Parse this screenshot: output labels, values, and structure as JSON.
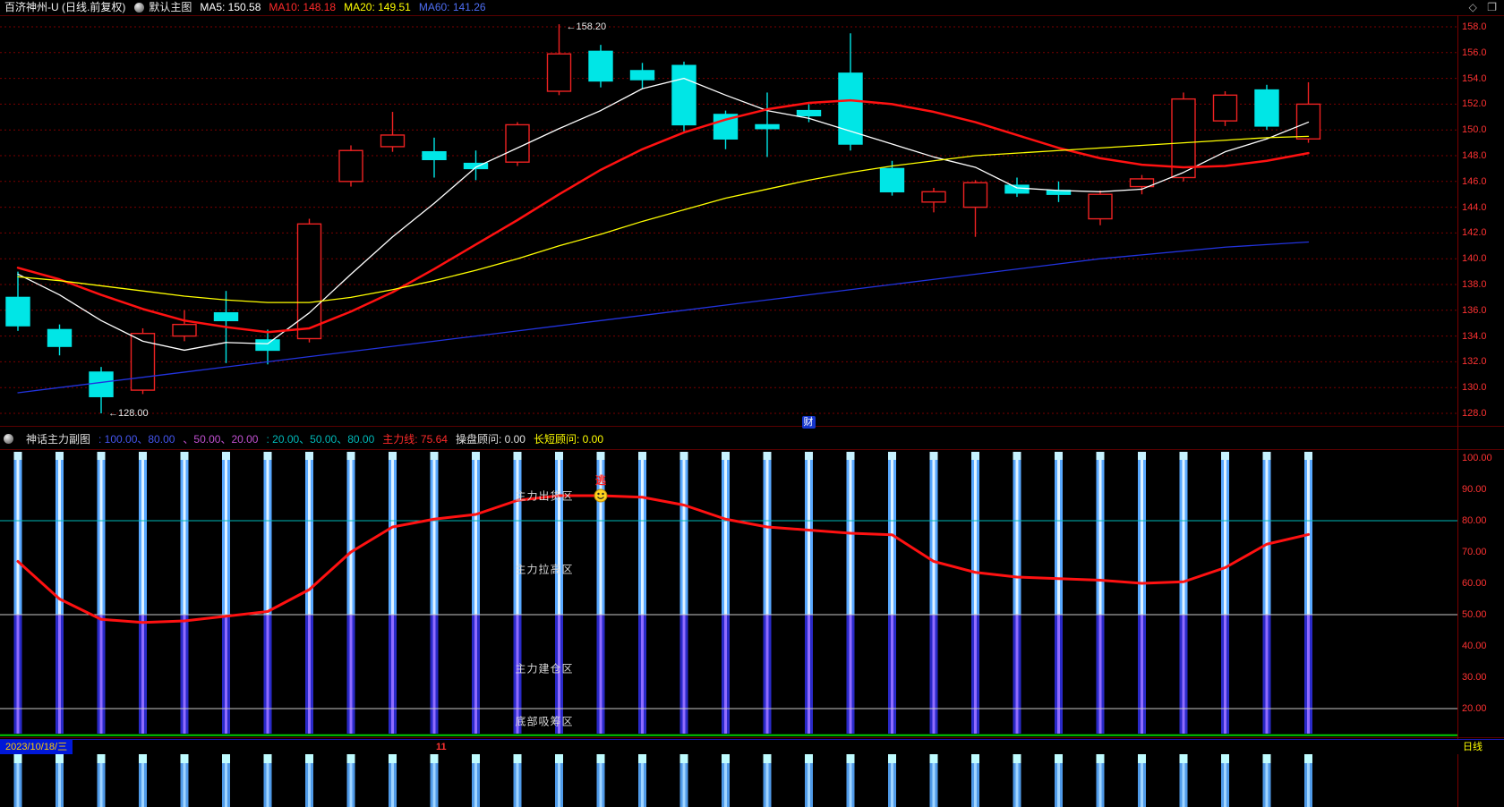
{
  "topbar": {
    "title": "百济神州-U (日线.前复权)",
    "main_indicator": "默认主图",
    "ma_values": [
      {
        "text": "MA5: 150.58",
        "color": "#ffffff"
      },
      {
        "text": "MA10: 148.18",
        "color": "#ff2a2a"
      },
      {
        "text": "MA20: 149.51",
        "color": "#ffff00"
      },
      {
        "text": "MA60: 141.26",
        "color": "#4e6ef2"
      }
    ],
    "icons": {
      "diamond": "◇",
      "windows": "❐"
    }
  },
  "sub_header": {
    "segments": [
      {
        "text": "神话主力副图",
        "color": "#e0e0e0"
      },
      {
        "text": ": 100.00、80.00",
        "color": "#4455ee"
      },
      {
        "text": "、50.00、20.00",
        "color": "#c050d0"
      },
      {
        "text": ": 20.00、50.00、80.00",
        "color": "#00b8b8"
      },
      {
        "text": "主力线: 75.64",
        "color": "#ff2a2a"
      },
      {
        "text": "操盘顾问: 0.00",
        "color": "#e0e0e0"
      },
      {
        "text": "长短顾问: 0.00",
        "color": "#ffff00"
      }
    ]
  },
  "main_chart": {
    "corner_tag": {
      "text": "财",
      "bar": 19
    },
    "annotations": [
      {
        "text": "←158.20",
        "bar": 13,
        "price": 158.2,
        "dy": 3
      },
      {
        "text": "←128.00",
        "bar": 2,
        "price": 128.0,
        "dy": 0
      }
    ]
  },
  "status_bar": {
    "date": "2023/10/18/三",
    "marker": "11",
    "period": "日线"
  },
  "chart_data": [
    {
      "type": "candlestick",
      "title": "百济神州-U 日线 前复权",
      "ylim": [
        127.0,
        158.6
      ],
      "y_ticks": [
        "158.0",
        "156.0",
        "154.0",
        "152.0",
        "150.0",
        "148.0",
        "146.0",
        "144.0",
        "142.0",
        "140.0",
        "138.0",
        "136.0",
        "134.0",
        "132.0",
        "130.0",
        "128.0"
      ],
      "up_color": "#ee2222",
      "down_color": "#00e6e6",
      "ohlc": [
        [
          137.0,
          139.0,
          134.4,
          134.8
        ],
        [
          134.5,
          134.9,
          132.5,
          133.2
        ],
        [
          131.2,
          131.6,
          128.0,
          129.3
        ],
        [
          129.8,
          134.6,
          129.5,
          134.2
        ],
        [
          134.0,
          136.0,
          133.6,
          134.9
        ],
        [
          135.8,
          137.5,
          131.9,
          135.2
        ],
        [
          133.7,
          134.5,
          131.8,
          132.9
        ],
        [
          133.8,
          143.1,
          133.5,
          142.7
        ],
        [
          146.0,
          148.8,
          145.6,
          148.4
        ],
        [
          148.7,
          151.4,
          148.3,
          149.6
        ],
        [
          148.3,
          149.4,
          146.3,
          147.7
        ],
        [
          147.4,
          148.4,
          146.1,
          147.0
        ],
        [
          147.5,
          150.6,
          147.2,
          150.4
        ],
        [
          153.0,
          158.2,
          152.7,
          155.9
        ],
        [
          156.1,
          156.6,
          153.3,
          153.8
        ],
        [
          154.6,
          155.2,
          153.2,
          153.9
        ],
        [
          155.0,
          155.3,
          149.9,
          150.4
        ],
        [
          151.2,
          151.5,
          148.5,
          149.3
        ],
        [
          150.4,
          152.9,
          147.9,
          150.1
        ],
        [
          151.5,
          152.0,
          150.6,
          151.1
        ],
        [
          154.4,
          157.5,
          148.4,
          148.9
        ],
        [
          147.0,
          147.6,
          144.9,
          145.2
        ],
        [
          144.4,
          145.5,
          143.6,
          145.2
        ],
        [
          144.0,
          146.1,
          141.7,
          145.9
        ],
        [
          145.7,
          146.3,
          144.8,
          145.1
        ],
        [
          145.3,
          146.0,
          144.4,
          145.0
        ],
        [
          143.1,
          145.3,
          142.6,
          145.0
        ],
        [
          145.6,
          146.5,
          145.0,
          146.2
        ],
        [
          146.3,
          152.9,
          146.0,
          152.4
        ],
        [
          150.7,
          153.0,
          150.3,
          152.7
        ],
        [
          153.1,
          153.5,
          150.0,
          150.3
        ],
        [
          149.3,
          153.7,
          149.0,
          152.0
        ]
      ],
      "series": [
        {
          "name": "MA5",
          "color": "#ffffff",
          "values": [
            138.8,
            137.2,
            135.2,
            133.6,
            132.9,
            133.5,
            133.4,
            135.8,
            138.8,
            141.7,
            144.3,
            147.1,
            148.6,
            150.1,
            151.5,
            153.2,
            154.0,
            152.7,
            151.5,
            150.9,
            149.9,
            148.9,
            147.9,
            147.1,
            145.5,
            145.3,
            145.2,
            145.4,
            146.7,
            148.3,
            149.3,
            150.6
          ]
        },
        {
          "name": "MA10",
          "color": "#ff1111",
          "width": 2.5,
          "values": [
            139.3,
            138.4,
            137.2,
            136.1,
            135.2,
            134.7,
            134.3,
            134.6,
            135.9,
            137.4,
            139.2,
            141.1,
            143.0,
            145.0,
            146.9,
            148.5,
            149.8,
            150.8,
            151.6,
            152.1,
            152.3,
            152.0,
            151.4,
            150.6,
            149.6,
            148.6,
            147.8,
            147.3,
            147.1,
            147.2,
            147.6,
            148.2
          ]
        },
        {
          "name": "MA20",
          "color": "#ffff00",
          "values": [
            138.6,
            138.3,
            137.9,
            137.5,
            137.1,
            136.8,
            136.6,
            136.6,
            137.0,
            137.6,
            138.3,
            139.1,
            140.0,
            141.0,
            141.9,
            142.9,
            143.8,
            144.7,
            145.4,
            146.1,
            146.7,
            147.2,
            147.6,
            148.0,
            148.2,
            148.4,
            148.6,
            148.8,
            149.0,
            149.2,
            149.4,
            149.5
          ]
        },
        {
          "name": "MA60",
          "color": "#2233dd",
          "values": [
            129.6,
            130.0,
            130.4,
            130.8,
            131.2,
            131.6,
            132.0,
            132.4,
            132.8,
            133.2,
            133.6,
            134.0,
            134.4,
            134.8,
            135.2,
            135.6,
            136.0,
            136.4,
            136.8,
            137.2,
            137.6,
            138.0,
            138.4,
            138.8,
            139.2,
            139.6,
            140.0,
            140.3,
            140.6,
            140.9,
            141.1,
            141.3
          ]
        }
      ]
    },
    {
      "type": "bar+line",
      "title": "神话主力副图",
      "ylim": [
        10,
        102
      ],
      "y_ticks": [
        "100.00",
        "90.00",
        "80.00",
        "70.00",
        "60.00",
        "50.00",
        "40.00",
        "30.00",
        "20.00"
      ],
      "bars": {
        "top": 100,
        "bottom": 12,
        "split": 50,
        "top_color": "#58a8ff",
        "bottom_color": "#2a2ac8"
      },
      "line": {
        "name": "主力线",
        "color": "#ff1111",
        "values": [
          67,
          55,
          48.5,
          47.5,
          48,
          49.5,
          51,
          58,
          70,
          78,
          80.5,
          82,
          86.5,
          88,
          88,
          87.5,
          85,
          80.5,
          78,
          77,
          76,
          75.5,
          67,
          63.5,
          62,
          61.5,
          61,
          60,
          60.5,
          65,
          72.5,
          75.6
        ]
      },
      "ref_lines": [
        {
          "value": 80,
          "color": "#00b8b8"
        },
        {
          "value": 50,
          "color": "#c8c8c8"
        },
        {
          "value": 20,
          "color": "#c8c8c8"
        },
        {
          "value": 11.5,
          "color": "#00cc00"
        }
      ],
      "zones": [
        {
          "label": "主力出货区",
          "value": 88
        },
        {
          "label": "主力拉高区",
          "value": 64.5
        },
        {
          "label": "主力建仓区",
          "value": 33
        },
        {
          "label": "底部吸筹区",
          "value": 16
        }
      ],
      "signal": {
        "bar": 14,
        "value": 88,
        "icon": "smiley-face-icon",
        "text": "逃",
        "color": "#ff2222"
      }
    }
  ]
}
